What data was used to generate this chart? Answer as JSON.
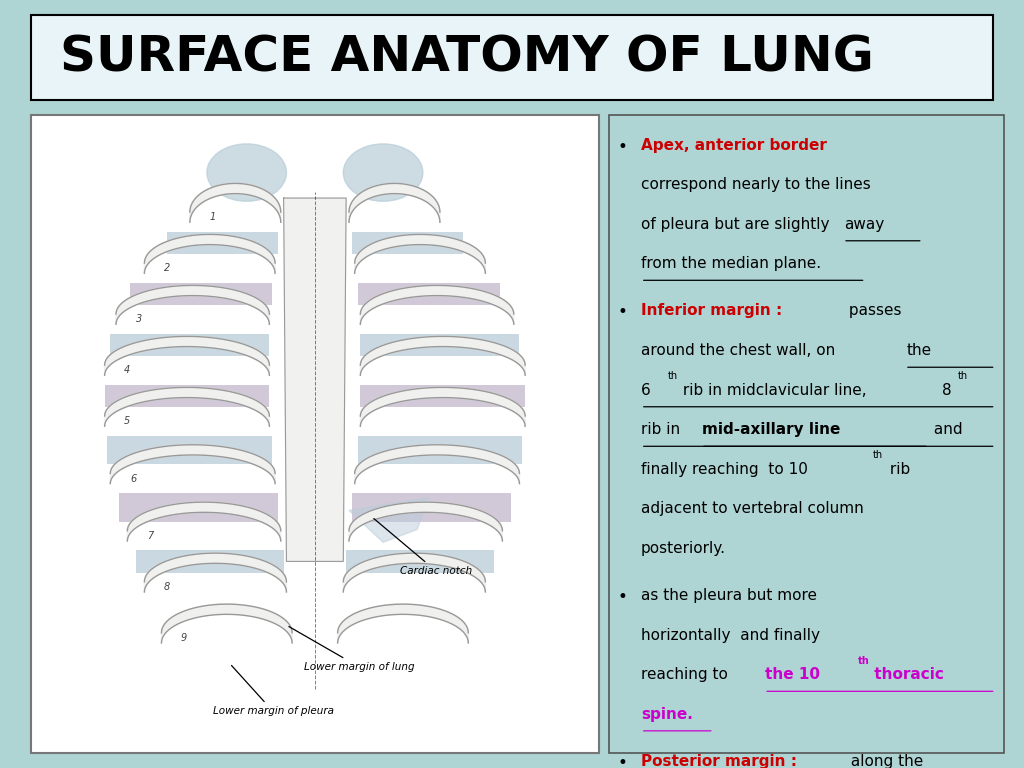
{
  "title": "SURFACE ANATOMY OF LUNG",
  "title_fontsize": 36,
  "title_color": "#000000",
  "title_bg": "#e8f4f8",
  "title_border": "#000000",
  "bg_color": "#aed4d4",
  "left_panel_bg": "#ffffff",
  "right_panel_bg": "#aed4d4",
  "red_color": "#cc0000",
  "magenta_color": "#cc00cc",
  "black_color": "#000000",
  "image_caption1": "Cardiac notch",
  "image_caption2": "Lower margin of lung",
  "image_caption3": "Lower margin of pleura"
}
